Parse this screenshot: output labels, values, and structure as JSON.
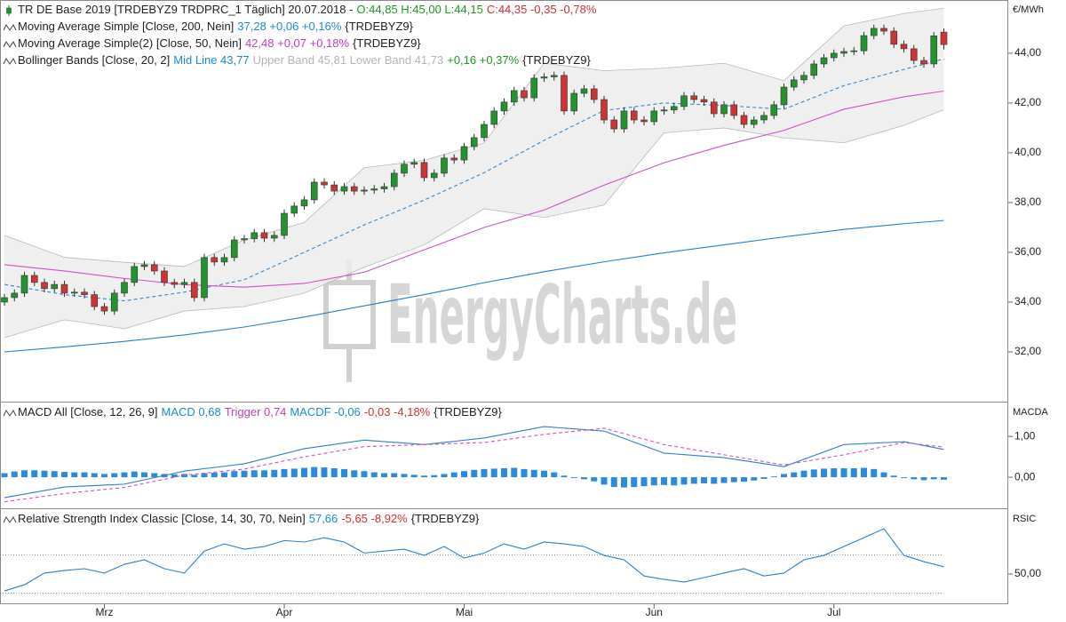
{
  "chart_data": [
    {
      "type": "candlestick",
      "legend": [
        [
          {
            "text": "TR DE Base 2019 [TRDEBYZ9 TRDPRC_1 Täglich] 20.07.2018 -",
            "color": "#222222"
          },
          {
            "text": "O:44,85 H:45,00 L:44,15",
            "color": "#1a9a1a"
          },
          {
            "text": "C:44,35 -0,35 -0,78%",
            "color": "#d03030"
          }
        ],
        [
          {
            "text": "Moving Average Simple [Close, 200, Nein]",
            "color": "#222222"
          },
          {
            "text": "37,28 +0,06 +0,16%",
            "color": "#1a8ad4"
          },
          {
            "text": "{TRDEBYZ9}",
            "color": "#222222"
          }
        ],
        [
          {
            "text": "Moving Average Simple(2) [Close, 50, Nein]",
            "color": "#222222"
          },
          {
            "text": "42,48 +0,07 +0,18%",
            "color": "#c040c0"
          },
          {
            "text": "{TRDEBYZ9}",
            "color": "#222222"
          }
        ],
        [
          {
            "text": "Bollinger Bands [Close, 20, 2]",
            "color": "#222222"
          },
          {
            "text": "Mid Line 43,77",
            "color": "#1a8ad4"
          },
          {
            "text": "Upper Band 45,81 Lower Band 41,73",
            "color": "#b4b4b4"
          },
          {
            "text": "+0,16 +0,37%",
            "color": "#1a9a1a"
          },
          {
            "text": "{TRDEBYZ9}",
            "color": "#222222"
          }
        ]
      ],
      "unit": "€/MWh",
      "watermark": "EnergyCharts.de",
      "categories": [
        null,
        null,
        null,
        null,
        null,
        null,
        null,
        null,
        null,
        null,
        "Mrz",
        null,
        null,
        null,
        null,
        null,
        null,
        null,
        null,
        null,
        null,
        null,
        null,
        null,
        null,
        null,
        null,
        null,
        "Apr",
        null,
        null,
        null,
        null,
        null,
        null,
        null,
        null,
        null,
        null,
        null,
        null,
        null,
        null,
        null,
        null,
        null,
        "Mai",
        null,
        null,
        null,
        null,
        null,
        null,
        null,
        null,
        null,
        null,
        null,
        null,
        null,
        null,
        null,
        null,
        null,
        null,
        "Jun",
        null,
        null,
        null,
        null,
        null,
        null,
        null,
        null,
        null,
        null,
        null,
        null,
        null,
        null,
        null,
        null,
        null,
        "Jul",
        null,
        null,
        null,
        null,
        null,
        null,
        null,
        null,
        null,
        null,
        null
      ],
      "open": [
        34.0,
        34.18,
        34.36,
        35.07,
        34.79,
        34.54,
        34.71,
        34.36,
        34.4,
        34.3,
        33.82,
        33.64,
        34.36,
        34.79,
        35.43,
        35.5,
        35.25,
        34.79,
        34.71,
        34.79,
        34.18,
        35.79,
        35.61,
        35.79,
        36.5,
        36.55,
        36.79,
        36.57,
        36.68,
        37.57,
        37.86,
        38.11,
        38.82,
        38.71,
        38.46,
        38.64,
        38.46,
        38.5,
        38.55,
        38.64,
        39.18,
        39.54,
        39.61,
        39.0,
        39.18,
        39.79,
        39.71,
        40.25,
        40.61,
        41.14,
        41.68,
        42.04,
        42.5,
        42.21,
        43.0,
        43.05,
        43.11,
        41.68,
        42.39,
        42.57,
        42.14,
        41.32,
        40.96,
        41.68,
        41.32,
        41.25,
        41.68,
        41.72,
        41.86,
        42.29,
        42.14,
        42.04,
        41.57,
        41.93,
        41.5,
        41.14,
        41.32,
        41.5,
        41.93,
        42.64,
        42.93,
        43.11,
        43.57,
        43.82,
        44.0,
        44.07,
        44.1,
        44.71,
        45.0,
        44.89,
        44.36,
        44.18,
        43.71,
        43.57,
        44.85
      ],
      "high": [
        34.33,
        34.51,
        35.22,
        35.22,
        34.94,
        34.86,
        34.86,
        34.55,
        34.55,
        34.45,
        33.97,
        34.51,
        34.94,
        35.58,
        35.65,
        35.65,
        35.4,
        34.94,
        34.94,
        34.94,
        35.94,
        35.94,
        35.94,
        36.65,
        36.7,
        36.94,
        36.94,
        36.83,
        37.72,
        38.01,
        38.26,
        38.97,
        38.97,
        38.86,
        38.79,
        38.79,
        38.65,
        38.7,
        38.79,
        39.33,
        39.69,
        39.76,
        39.76,
        39.33,
        39.94,
        39.94,
        40.4,
        40.76,
        41.29,
        41.83,
        42.19,
        42.65,
        42.65,
        43.15,
        43.2,
        43.26,
        43.26,
        42.54,
        42.72,
        42.72,
        42.29,
        41.47,
        41.83,
        41.83,
        41.47,
        41.83,
        41.87,
        42.01,
        42.44,
        42.44,
        42.29,
        42.19,
        42.08,
        42.08,
        41.65,
        41.47,
        41.65,
        42.08,
        42.79,
        43.08,
        43.26,
        43.72,
        43.97,
        44.15,
        44.22,
        44.25,
        44.86,
        45.15,
        45.15,
        45.04,
        44.51,
        44.33,
        43.86,
        44.85,
        45.0
      ],
      "low": [
        33.85,
        34.03,
        34.21,
        34.64,
        34.39,
        34.39,
        34.21,
        34.21,
        34.15,
        33.67,
        33.49,
        33.49,
        34.21,
        34.64,
        35.28,
        35.1,
        34.64,
        34.56,
        34.56,
        34.03,
        34.03,
        35.46,
        35.46,
        35.64,
        36.35,
        36.4,
        36.42,
        36.42,
        36.53,
        37.42,
        37.71,
        37.96,
        38.56,
        38.31,
        38.31,
        38.31,
        38.31,
        38.35,
        38.4,
        38.49,
        39.03,
        39.39,
        38.85,
        38.85,
        39.03,
        39.56,
        39.56,
        40.1,
        40.46,
        40.99,
        41.53,
        41.89,
        42.06,
        42.06,
        42.85,
        42.9,
        41.53,
        41.53,
        42.24,
        41.99,
        41.17,
        40.81,
        40.81,
        41.17,
        41.1,
        41.1,
        41.53,
        41.57,
        41.71,
        41.99,
        41.89,
        41.42,
        41.42,
        41.35,
        40.99,
        40.99,
        41.17,
        41.35,
        41.78,
        42.49,
        42.78,
        42.96,
        43.42,
        43.67,
        43.85,
        43.92,
        43.95,
        44.56,
        44.74,
        44.21,
        44.03,
        43.56,
        43.42,
        43.42,
        44.15
      ],
      "close": [
        34.18,
        34.36,
        35.07,
        34.79,
        34.54,
        34.71,
        34.36,
        34.4,
        34.3,
        33.82,
        33.64,
        34.36,
        34.79,
        35.43,
        35.5,
        35.25,
        34.79,
        34.71,
        34.79,
        34.18,
        35.79,
        35.61,
        35.79,
        36.5,
        36.55,
        36.79,
        36.57,
        36.68,
        37.57,
        37.86,
        38.11,
        38.82,
        38.71,
        38.46,
        38.64,
        38.46,
        38.5,
        38.55,
        38.64,
        39.18,
        39.54,
        39.61,
        39.0,
        39.18,
        39.79,
        39.71,
        40.25,
        40.61,
        41.14,
        41.68,
        42.04,
        42.5,
        42.21,
        43.0,
        43.05,
        43.11,
        41.68,
        42.39,
        42.57,
        42.14,
        41.32,
        40.96,
        41.68,
        41.32,
        41.25,
        41.68,
        41.72,
        41.86,
        42.29,
        42.14,
        42.04,
        41.57,
        41.93,
        41.5,
        41.14,
        41.32,
        41.5,
        41.93,
        42.64,
        42.93,
        43.11,
        43.57,
        43.82,
        44.0,
        44.07,
        44.1,
        44.71,
        45.0,
        44.89,
        44.36,
        44.18,
        43.71,
        43.57,
        44.7,
        44.35
      ],
      "up_color": "#22932e",
      "down_color": "#cc3535",
      "bands": {
        "x": [
          0,
          6,
          12,
          18,
          24,
          30,
          36,
          42,
          48,
          54,
          60,
          66,
          72,
          78,
          84,
          90,
          94
        ],
        "upper": [
          36.68,
          35.8,
          35.6,
          35.43,
          36.5,
          37.2,
          39.4,
          39.7,
          40.4,
          43.6,
          43.3,
          43.4,
          43.6,
          42.9,
          45.1,
          45.6,
          45.81
        ],
        "lower": [
          32.57,
          33.29,
          32.93,
          33.64,
          33.82,
          34.36,
          35.4,
          36.3,
          37.75,
          37.4,
          37.9,
          40.8,
          41.0,
          40.6,
          40.4,
          41.1,
          41.73
        ],
        "color": "#ececec",
        "edge": "#b8b8b8"
      },
      "series": [
        {
          "color": "#2a8ad8",
          "dashed": true,
          "x": [
            0,
            6,
            12,
            18,
            24,
            30,
            36,
            42,
            48,
            54,
            60,
            66,
            72,
            78,
            84,
            90,
            94
          ],
          "values": [
            34.71,
            34.3,
            34.05,
            34.4,
            34.9,
            36.0,
            37.1,
            38.1,
            39.2,
            40.5,
            41.7,
            42.0,
            41.9,
            41.75,
            42.7,
            43.35,
            43.77
          ]
        },
        {
          "color": "#d24fc8",
          "dashed": false,
          "x": [
            0,
            6,
            12,
            18,
            24,
            30,
            36,
            42,
            48,
            54,
            60,
            66,
            72,
            78,
            84,
            90,
            94
          ],
          "values": [
            35.5,
            35.25,
            34.95,
            34.7,
            34.6,
            34.75,
            35.2,
            36.1,
            37.0,
            37.7,
            38.7,
            39.6,
            40.3,
            40.9,
            41.75,
            42.25,
            42.48
          ]
        },
        {
          "color": "#1e7fd0",
          "dashed": false,
          "x": [
            0,
            6,
            12,
            18,
            24,
            30,
            36,
            42,
            48,
            54,
            60,
            66,
            72,
            78,
            84,
            90,
            94
          ],
          "values": [
            32.0,
            32.2,
            32.42,
            32.68,
            33.0,
            33.4,
            33.85,
            34.3,
            34.78,
            35.22,
            35.62,
            35.98,
            36.3,
            36.62,
            36.92,
            37.15,
            37.28
          ]
        }
      ],
      "ylim": [
        30.0,
        46.14
      ],
      "yticks": [
        {
          "value": 32,
          "label": "32,00"
        },
        {
          "value": 34,
          "label": "34,00"
        },
        {
          "value": 36,
          "label": "36,00"
        },
        {
          "value": 38,
          "label": "38,00"
        },
        {
          "value": 40,
          "label": "40,00"
        },
        {
          "value": 42,
          "label": "42,00"
        },
        {
          "value": 44,
          "label": "44,00"
        }
      ]
    },
    {
      "type": "macd",
      "legend": [
        [
          {
            "text": "MACD All [Close, 12, 26, 9]",
            "color": "#222222"
          },
          {
            "text": "MACD 0,68",
            "color": "#1a8ad4"
          },
          {
            "text": "Trigger 0,74",
            "color": "#c040c0"
          },
          {
            "text": "MACDF -0,06",
            "color": "#1a8ad4"
          },
          {
            "text": "-0,03 -4,18%",
            "color": "#d03030"
          },
          {
            "text": "{TRDEBYZ9}",
            "color": "#222222"
          }
        ]
      ],
      "unit": "MACDA",
      "histogram": {
        "color": "#2a8ae0",
        "values": [
          0.1,
          0.14,
          0.17,
          0.17,
          0.16,
          0.15,
          0.13,
          0.12,
          0.12,
          0.1,
          0.08,
          0.1,
          0.12,
          0.14,
          0.12,
          0.1,
          0.08,
          0.07,
          0.08,
          0.06,
          0.1,
          0.11,
          0.12,
          0.15,
          0.16,
          0.17,
          0.17,
          0.18,
          0.2,
          0.21,
          0.23,
          0.25,
          0.24,
          0.22,
          0.2,
          0.17,
          0.15,
          0.12,
          0.1,
          0.1,
          0.08,
          0.06,
          0.04,
          0.05,
          0.08,
          0.12,
          0.15,
          0.18,
          0.2,
          0.21,
          0.22,
          0.23,
          0.2,
          0.18,
          0.16,
          0.12,
          0.04,
          -0.02,
          -0.05,
          -0.1,
          -0.18,
          -0.24,
          -0.25,
          -0.24,
          -0.22,
          -0.2,
          -0.19,
          -0.2,
          -0.18,
          -0.16,
          -0.15,
          -0.16,
          -0.14,
          -0.12,
          -0.11,
          -0.08,
          -0.04,
          0.02,
          0.08,
          0.12,
          0.16,
          0.19,
          0.21,
          0.22,
          0.22,
          0.22,
          0.23,
          0.2,
          0.12,
          0.04,
          -0.02,
          -0.05,
          -0.07,
          -0.05,
          -0.06
        ]
      },
      "series": [
        {
          "color": "#2a7fd4",
          "dashed": false,
          "x": [
            0,
            6,
            12,
            18,
            24,
            30,
            36,
            42,
            48,
            54,
            60,
            66,
            72,
            78,
            84,
            90,
            94
          ],
          "values": [
            -0.5,
            -0.24,
            -0.17,
            0.15,
            0.33,
            0.7,
            0.91,
            0.8,
            0.96,
            1.24,
            1.13,
            0.59,
            0.48,
            0.26,
            0.8,
            0.87,
            0.68
          ]
        },
        {
          "color": "#d24fc8",
          "dashed": true,
          "x": [
            0,
            6,
            12,
            18,
            24,
            30,
            36,
            42,
            48,
            54,
            60,
            66,
            72,
            78,
            84,
            90,
            94
          ],
          "values": [
            -0.6,
            -0.4,
            -0.25,
            0.05,
            0.2,
            0.5,
            0.75,
            0.8,
            0.85,
            1.05,
            1.2,
            0.8,
            0.55,
            0.3,
            0.55,
            0.85,
            0.74
          ]
        }
      ],
      "ylim": [
        -0.76,
        1.83
      ],
      "yticks": [
        {
          "value": 0,
          "label": "0,00"
        },
        {
          "value": 1,
          "label": "1,00"
        }
      ]
    },
    {
      "type": "line",
      "legend": [
        [
          {
            "text": "Relative Strength Index Classic [Close, 14, 30, 70, Nein]",
            "color": "#222222"
          },
          {
            "text": "57,66",
            "color": "#1a8ad4"
          },
          {
            "text": "-5,65 -8,92%",
            "color": "#d03030"
          },
          {
            "text": "{TRDEBYZ9}",
            "color": "#222222"
          }
        ]
      ],
      "unit": "RSIC",
      "levels": [
        30,
        70
      ],
      "series": [
        {
          "color": "#2a7fd4",
          "dashed": false,
          "x": [
            0,
            2,
            4,
            6,
            8,
            10,
            12,
            14,
            16,
            18,
            20,
            22,
            24,
            26,
            28,
            30,
            32,
            34,
            36,
            38,
            40,
            42,
            44,
            46,
            48,
            50,
            52,
            54,
            56,
            58,
            60,
            62,
            64,
            66,
            68,
            70,
            72,
            74,
            76,
            78,
            80,
            82,
            84,
            86,
            88,
            90,
            92,
            94
          ],
          "values": [
            32.3,
            38.8,
            51.0,
            53.7,
            55.6,
            51.0,
            60.2,
            64.9,
            55.6,
            51.0,
            74.0,
            81.6,
            76.0,
            78.8,
            85.0,
            83.5,
            88.0,
            83.5,
            72.0,
            74.0,
            76.0,
            69.5,
            78.8,
            66.7,
            72.0,
            81.6,
            76.0,
            83.5,
            81.6,
            78.8,
            69.5,
            64.9,
            48.0,
            44.4,
            41.6,
            46.3,
            51.0,
            55.6,
            48.0,
            51.0,
            64.9,
            69.5,
            78.8,
            88.0,
            97.4,
            69.5,
            63.0,
            57.66
          ]
        }
      ],
      "ylim": [
        18.4,
        117.9
      ],
      "yticks": [
        {
          "value": 50,
          "label": "50,00"
        }
      ]
    }
  ]
}
